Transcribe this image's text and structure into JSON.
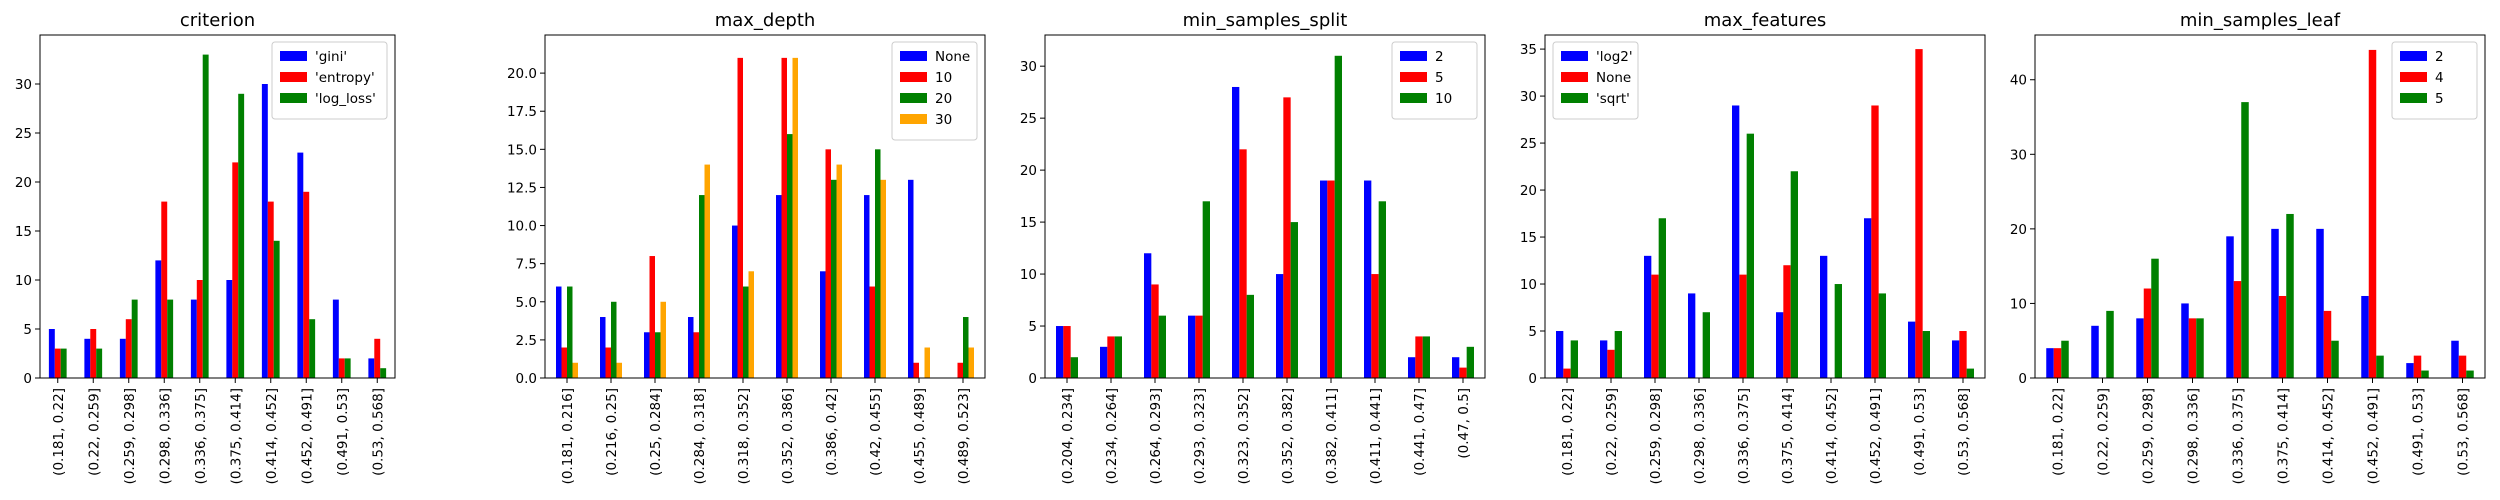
{
  "colors": {
    "blue": "#0000ff",
    "red": "#ff0000",
    "green": "#008000",
    "orange": "#ffa500"
  },
  "chart_data": [
    {
      "type": "bar",
      "title": "criterion",
      "categories": [
        "(0.181, 0.22]",
        "(0.22, 0.259]",
        "(0.259, 0.298]",
        "(0.298, 0.336]",
        "(0.336, 0.375]",
        "(0.375, 0.414]",
        "(0.414, 0.452]",
        "(0.452, 0.491]",
        "(0.491, 0.53]",
        "(0.53, 0.568]"
      ],
      "ylim": [
        0,
        35
      ],
      "yticks": [
        "0",
        "5",
        "10",
        "15",
        "20",
        "25",
        "30"
      ],
      "legend_position": "top-right",
      "series": [
        {
          "name": "'gini'",
          "color": "blue",
          "values": [
            5,
            4,
            4,
            12,
            8,
            10,
            30,
            23,
            8,
            2
          ]
        },
        {
          "name": "'entropy'",
          "color": "red",
          "values": [
            3,
            5,
            6,
            18,
            10,
            22,
            18,
            19,
            2,
            4
          ]
        },
        {
          "name": "'log_loss'",
          "color": "green",
          "values": [
            3,
            3,
            8,
            8,
            33,
            29,
            14,
            6,
            2,
            1
          ]
        }
      ]
    },
    {
      "type": "bar",
      "title": "max_depth",
      "categories": [
        "(0.181, 0.216]",
        "(0.216, 0.25]",
        "(0.25, 0.284]",
        "(0.284, 0.318]",
        "(0.318, 0.352]",
        "(0.352, 0.386]",
        "(0.386, 0.42]",
        "(0.42, 0.455]",
        "(0.455, 0.489]",
        "(0.489, 0.523]"
      ],
      "ylim": [
        0,
        22.5
      ],
      "yticks": [
        "0.0",
        "2.5",
        "5.0",
        "7.5",
        "10.0",
        "12.5",
        "15.0",
        "17.5",
        "20.0"
      ],
      "legend_position": "top-right",
      "series": [
        {
          "name": "None",
          "color": "blue",
          "values": [
            6,
            4,
            3,
            4,
            10,
            12,
            7,
            12,
            13,
            0
          ]
        },
        {
          "name": "10",
          "color": "red",
          "values": [
            2,
            2,
            8,
            3,
            21,
            21,
            15,
            6,
            1,
            1
          ]
        },
        {
          "name": "20",
          "color": "green",
          "values": [
            6,
            5,
            3,
            12,
            6,
            16,
            13,
            15,
            0,
            4
          ]
        },
        {
          "name": "30",
          "color": "orange",
          "values": [
            1,
            1,
            5,
            14,
            7,
            21,
            14,
            13,
            2,
            2
          ]
        }
      ]
    },
    {
      "type": "bar",
      "title": "min_samples_split",
      "categories": [
        "(0.204, 0.234]",
        "(0.234, 0.264]",
        "(0.264, 0.293]",
        "(0.293, 0.323]",
        "(0.323, 0.352]",
        "(0.352, 0.382]",
        "(0.382, 0.411]",
        "(0.411, 0.441]",
        "(0.441, 0.47]",
        "(0.47, 0.5]"
      ],
      "ylim": [
        0,
        33
      ],
      "yticks": [
        "0",
        "5",
        "10",
        "15",
        "20",
        "25",
        "30"
      ],
      "legend_position": "top-right",
      "series": [
        {
          "name": "2",
          "color": "blue",
          "values": [
            5,
            3,
            12,
            6,
            28,
            10,
            19,
            19,
            2,
            2
          ]
        },
        {
          "name": "5",
          "color": "red",
          "values": [
            5,
            4,
            9,
            6,
            22,
            27,
            19,
            10,
            4,
            1
          ]
        },
        {
          "name": "10",
          "color": "green",
          "values": [
            2,
            4,
            6,
            17,
            8,
            15,
            31,
            17,
            4,
            3
          ]
        }
      ]
    },
    {
      "type": "bar",
      "title": "max_features",
      "categories": [
        "(0.181, 0.22]",
        "(0.22, 0.259]",
        "(0.259, 0.298]",
        "(0.298, 0.336]",
        "(0.336, 0.375]",
        "(0.375, 0.414]",
        "(0.414, 0.452]",
        "(0.452, 0.491]",
        "(0.491, 0.53]",
        "(0.53, 0.568]"
      ],
      "ylim": [
        0,
        36.5
      ],
      "yticks": [
        "0",
        "5",
        "10",
        "15",
        "20",
        "25",
        "30",
        "35"
      ],
      "legend_position": "top-left",
      "series": [
        {
          "name": "'log2'",
          "color": "blue",
          "values": [
            5,
            4,
            13,
            9,
            29,
            7,
            13,
            17,
            6,
            4
          ]
        },
        {
          "name": "None",
          "color": "red",
          "values": [
            1,
            3,
            11,
            0,
            11,
            12,
            0,
            29,
            35,
            5
          ]
        },
        {
          "name": "'sqrt'",
          "color": "green",
          "values": [
            4,
            5,
            17,
            7,
            26,
            22,
            10,
            9,
            5,
            1
          ]
        }
      ]
    },
    {
      "type": "bar",
      "title": "min_samples_leaf",
      "categories": [
        "(0.181, 0.22]",
        "(0.22, 0.259]",
        "(0.259, 0.298]",
        "(0.298, 0.336]",
        "(0.336, 0.375]",
        "(0.375, 0.414]",
        "(0.414, 0.452]",
        "(0.452, 0.491]",
        "(0.491, 0.53]",
        "(0.53, 0.568]"
      ],
      "ylim": [
        0,
        46
      ],
      "yticks": [
        "0",
        "10",
        "20",
        "30",
        "40"
      ],
      "legend_position": "top-right",
      "series": [
        {
          "name": "2",
          "color": "blue",
          "values": [
            4,
            7,
            8,
            10,
            19,
            20,
            20,
            11,
            2,
            5
          ]
        },
        {
          "name": "4",
          "color": "red",
          "values": [
            4,
            0,
            12,
            8,
            13,
            11,
            9,
            44,
            3,
            3
          ]
        },
        {
          "name": "5",
          "color": "green",
          "values": [
            5,
            9,
            16,
            8,
            37,
            22,
            5,
            3,
            1,
            1
          ]
        }
      ]
    }
  ]
}
